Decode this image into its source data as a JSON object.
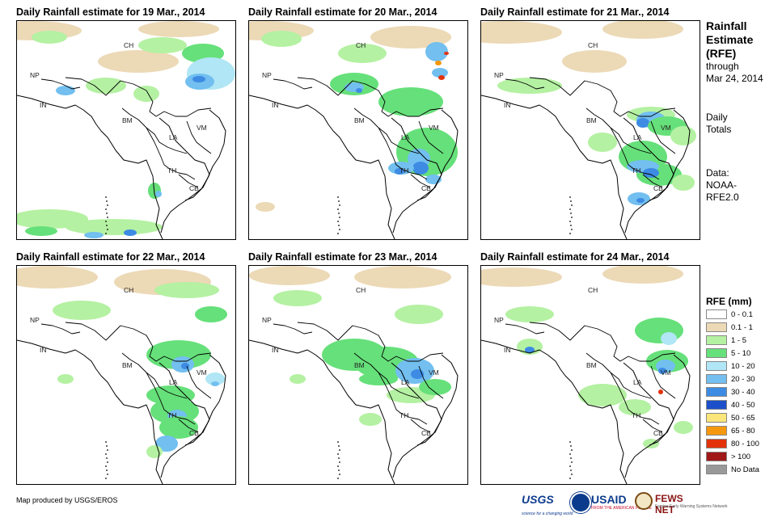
{
  "panels": [
    {
      "title": "Daily Rainfall estimate for 19 Mar., 2014"
    },
    {
      "title": "Daily Rainfall estimate for 20 Mar., 2014"
    },
    {
      "title": "Daily Rainfall estimate for 21 Mar., 2014"
    },
    {
      "title": "Daily Rainfall estimate for 22 Mar., 2014"
    },
    {
      "title": "Daily Rainfall estimate for 23 Mar., 2014"
    },
    {
      "title": "Daily Rainfall estimate for 24 Mar., 2014"
    }
  ],
  "country_labels": [
    "CH",
    "NP",
    "IN",
    "BM",
    "LA",
    "VM",
    "TH",
    "CB"
  ],
  "info": {
    "title_1": "Rainfall",
    "title_2": "Estimate",
    "title_3": "(RFE)",
    "through": "through",
    "date": "Mar 24, 2014",
    "daily": "Daily",
    "totals": "Totals",
    "data_label": "Data:",
    "data_source_1": "NOAA-",
    "data_source_2": "RFE2.0"
  },
  "legend": {
    "title": "RFE (mm)",
    "items": [
      {
        "label": "0 - 0.1",
        "color": "#ffffff"
      },
      {
        "label": "0.1 - 1",
        "color": "#ecd9b6"
      },
      {
        "label": "1 - 5",
        "color": "#b4f1a2"
      },
      {
        "label": "5 - 10",
        "color": "#66e07a"
      },
      {
        "label": "10 - 20",
        "color": "#b0e6f5"
      },
      {
        "label": "20 - 30",
        "color": "#72bff0"
      },
      {
        "label": "30 - 40",
        "color": "#3d8be3"
      },
      {
        "label": "40 - 50",
        "color": "#1c4fc9"
      },
      {
        "label": "50 - 65",
        "color": "#fae67a"
      },
      {
        "label": "65 - 80",
        "color": "#f5980e"
      },
      {
        "label": "80 - 100",
        "color": "#e3320a"
      },
      {
        "label": "> 100",
        "color": "#a11818"
      },
      {
        "label": "No Data",
        "color": "#999999"
      }
    ]
  },
  "credit": "Map produced by USGS/EROS",
  "logos": {
    "usgs": "USGS",
    "usgs_tagline": "science for a changing world",
    "usaid": "USAID",
    "usaid_tagline": "FROM THE AMERICAN PEOPLE",
    "fews": "FEWS NET",
    "fews_tagline": "Famine Early Warning Systems Network"
  }
}
